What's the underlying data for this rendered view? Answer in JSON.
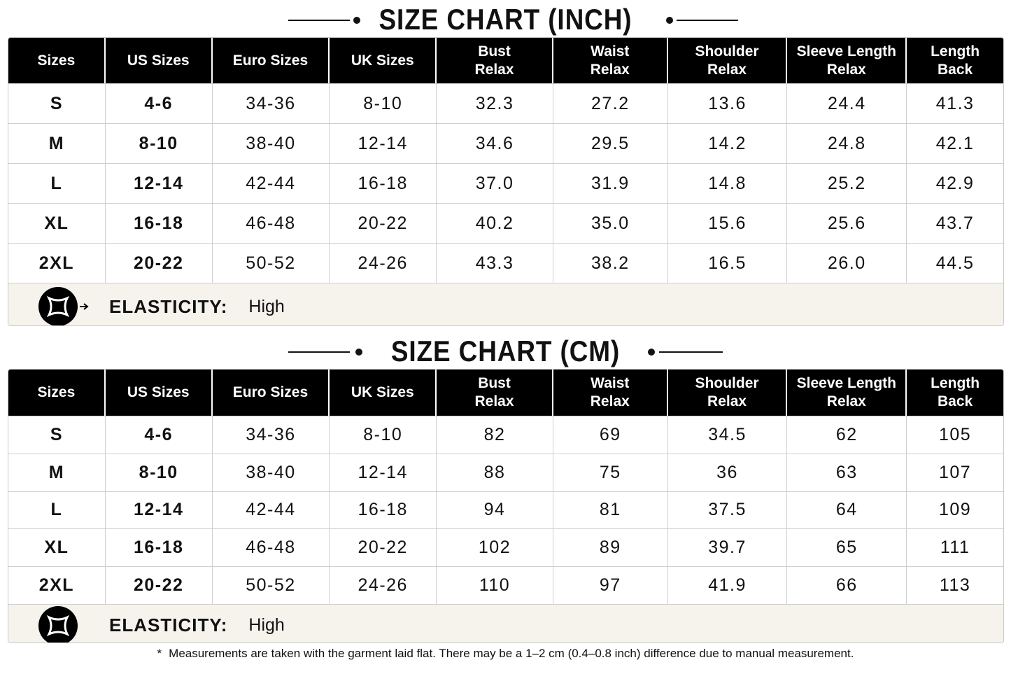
{
  "tables": [
    {
      "title": "SIZE CHART (INCH)",
      "header": [
        [
          "Sizes"
        ],
        [
          "US Sizes"
        ],
        [
          "Euro Sizes"
        ],
        [
          "UK Sizes"
        ],
        [
          "Bust",
          "Relax"
        ],
        [
          "Waist",
          "Relax"
        ],
        [
          "Shoulder",
          "Relax"
        ],
        [
          "Sleeve Length",
          "Relax"
        ],
        [
          "Length",
          "Back"
        ]
      ],
      "rows": [
        [
          "S",
          "4-6",
          "34-36",
          "8-10",
          "32.3",
          "27.2",
          "13.6",
          "24.4",
          "41.3"
        ],
        [
          "M",
          "8-10",
          "38-40",
          "12-14",
          "34.6",
          "29.5",
          "14.2",
          "24.8",
          "42.1"
        ],
        [
          "L",
          "12-14",
          "42-44",
          "16-18",
          "37.0",
          "31.9",
          "14.8",
          "25.2",
          "42.9"
        ],
        [
          "XL",
          "16-18",
          "46-48",
          "20-22",
          "40.2",
          "35.0",
          "15.6",
          "25.6",
          "43.7"
        ],
        [
          "2XL",
          "20-22",
          "50-52",
          "24-26",
          "43.3",
          "38.2",
          "16.5",
          "26.0",
          "44.5"
        ]
      ],
      "elasticity_label": "ELASTICITY:",
      "elasticity_value": "High"
    },
    {
      "title": "SIZE CHART (CM)",
      "header": [
        [
          "Sizes"
        ],
        [
          "US Sizes"
        ],
        [
          "Euro Sizes"
        ],
        [
          "UK Sizes"
        ],
        [
          "Bust",
          "Relax"
        ],
        [
          "Waist",
          "Relax"
        ],
        [
          "Shoulder",
          "Relax"
        ],
        [
          "Sleeve Length",
          "Relax"
        ],
        [
          "Length",
          "Back"
        ]
      ],
      "rows": [
        [
          "S",
          "4-6",
          "34-36",
          "8-10",
          "82",
          "69",
          "34.5",
          "62",
          "105"
        ],
        [
          "M",
          "8-10",
          "38-40",
          "12-14",
          "88",
          "75",
          "36",
          "63",
          "107"
        ],
        [
          "L",
          "12-14",
          "42-44",
          "16-18",
          "94",
          "81",
          "37.5",
          "64",
          "109"
        ],
        [
          "XL",
          "16-18",
          "46-48",
          "20-22",
          "102",
          "89",
          "39.7",
          "65",
          "111"
        ],
        [
          "2XL",
          "20-22",
          "50-52",
          "24-26",
          "110",
          "97",
          "41.9",
          "66",
          "113"
        ]
      ],
      "elasticity_label": "ELASTICITY:",
      "elasticity_value": "High"
    }
  ],
  "footnote": {
    "mark": "*",
    "text": "Measurements are taken with the garment laid flat.  There may be a  1–2 cm (0.4–0.8 inch) difference due to manual measurement."
  }
}
